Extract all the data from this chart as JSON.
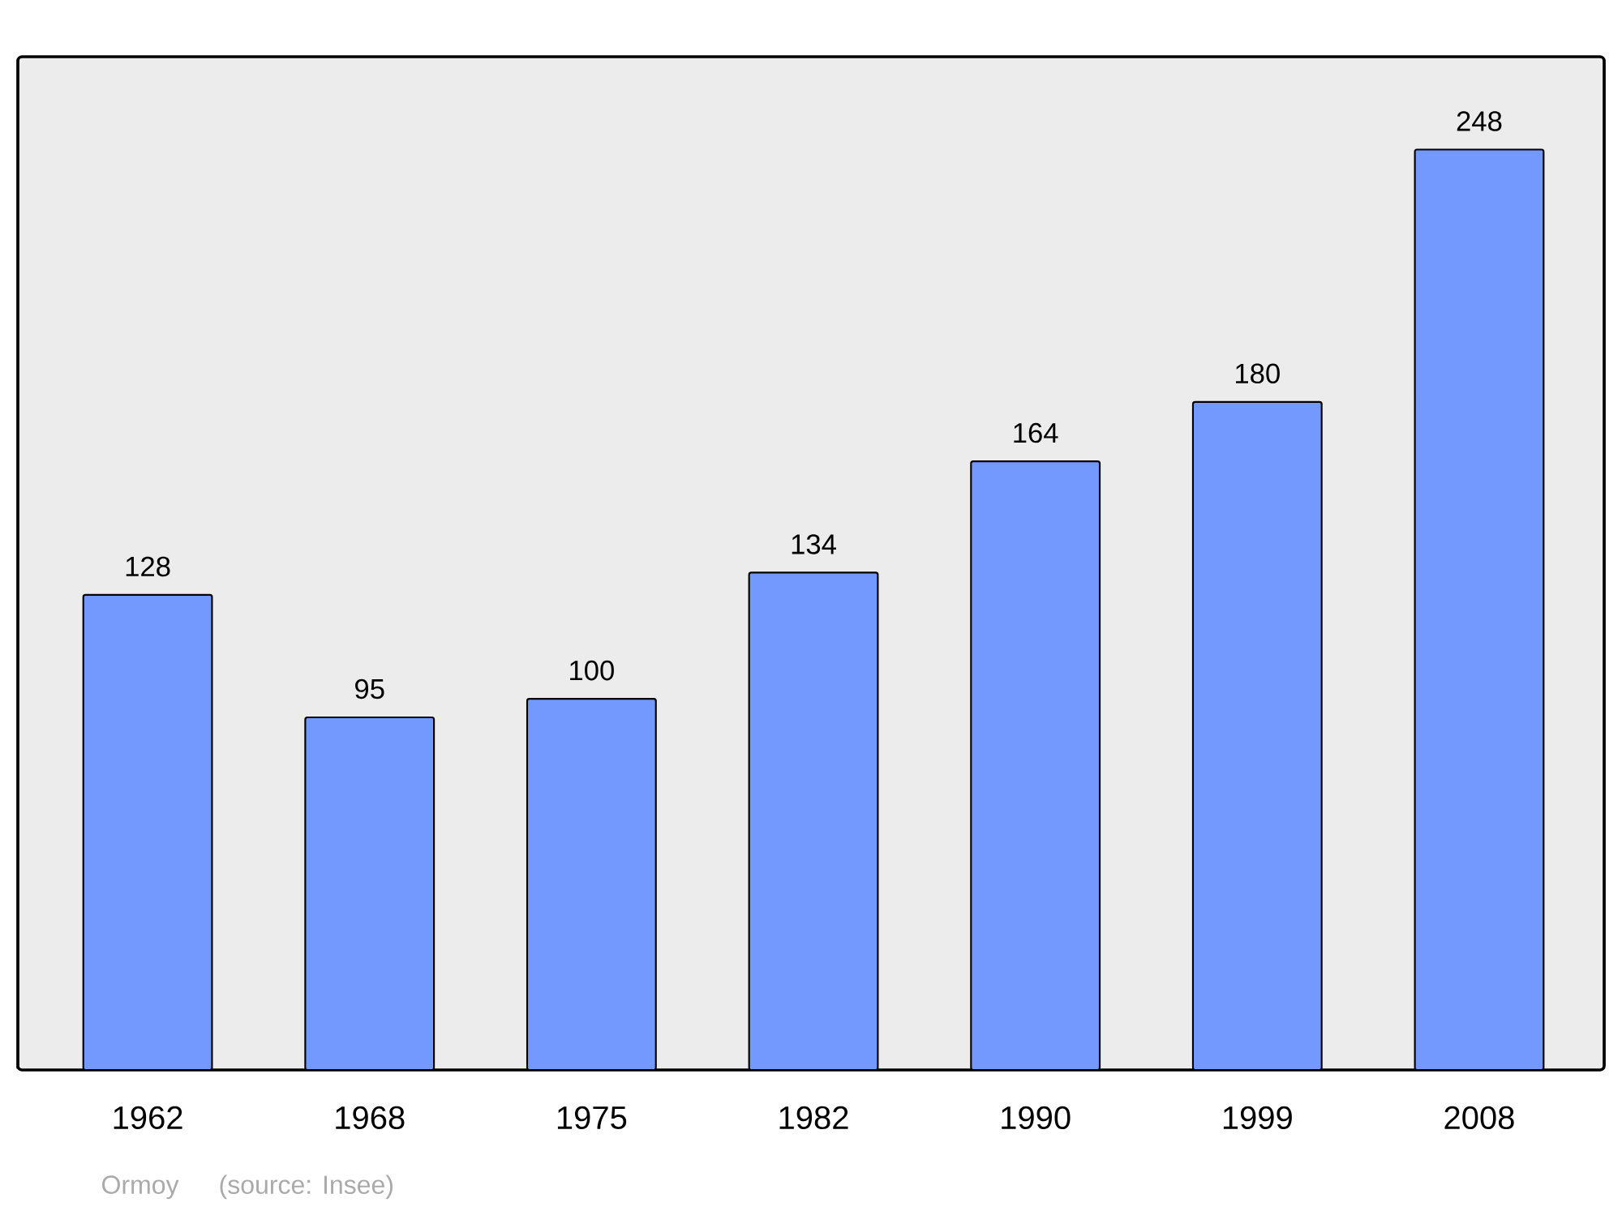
{
  "chart_data": {
    "type": "bar",
    "categories": [
      "1962",
      "1968",
      "1975",
      "1982",
      "1990",
      "1999",
      "2008"
    ],
    "values": [
      128,
      95,
      100,
      134,
      164,
      180,
      248
    ],
    "color": "#7399ff",
    "ylim": [
      0,
      273
    ],
    "data_labels": true,
    "annotations": [
      "Ormoy",
      "(source: Insee)"
    ]
  }
}
